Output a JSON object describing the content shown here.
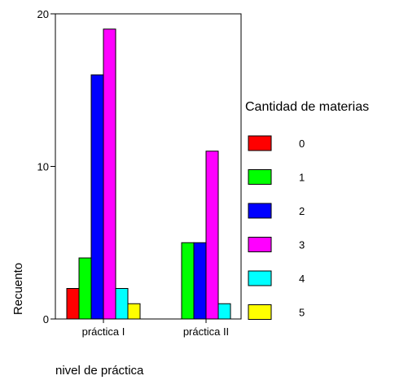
{
  "chart_data": {
    "type": "bar",
    "title": "",
    "xlabel": "nivel de práctica",
    "ylabel": "Recuento",
    "categories": [
      "práctica I",
      "práctica II"
    ],
    "ylim": [
      0,
      20
    ],
    "yticks": [
      0,
      10,
      20
    ],
    "grid": false,
    "legend_title": "Cantidad de materias",
    "legend_position": "right",
    "series": [
      {
        "name": "0",
        "color": "#ff0000",
        "values": [
          2,
          0
        ]
      },
      {
        "name": "1",
        "color": "#00ff00",
        "values": [
          4,
          5
        ]
      },
      {
        "name": "2",
        "color": "#0000ff",
        "values": [
          16,
          5
        ]
      },
      {
        "name": "3",
        "color": "#ff00ff",
        "values": [
          19,
          11
        ]
      },
      {
        "name": "4",
        "color": "#00ffff",
        "values": [
          2,
          1
        ]
      },
      {
        "name": "5",
        "color": "#ffff00",
        "values": [
          1,
          0
        ]
      }
    ]
  }
}
